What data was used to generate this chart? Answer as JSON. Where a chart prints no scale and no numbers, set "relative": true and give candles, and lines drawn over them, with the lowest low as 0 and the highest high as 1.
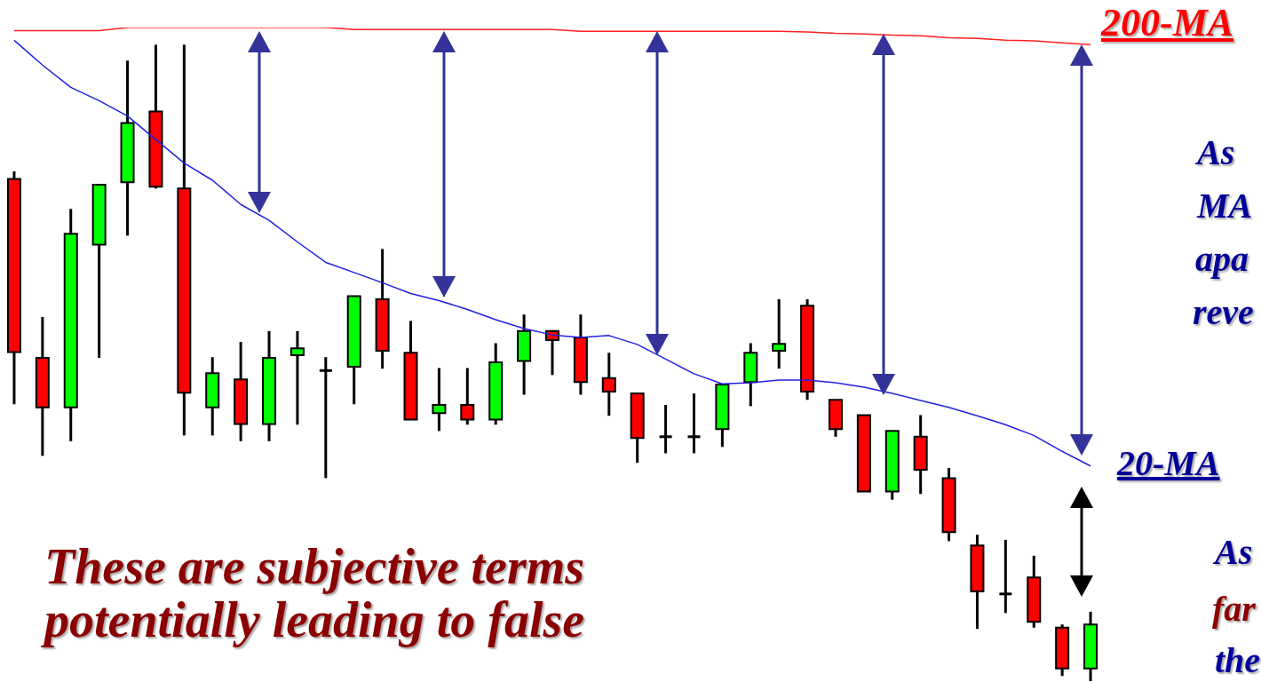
{
  "chart_data": {
    "type": "candlestick",
    "relative": true,
    "legend": false,
    "categories": [
      null,
      null,
      null,
      null,
      null,
      null,
      null,
      null,
      null,
      null,
      null,
      null,
      null,
      null,
      null,
      null,
      null,
      null,
      null,
      null,
      null,
      null,
      null,
      null,
      null,
      null,
      null,
      null,
      null,
      null,
      null,
      null,
      null,
      null,
      null,
      null,
      null,
      null,
      null
    ],
    "ohlc": [
      [
        0.789,
        0.801,
        0.435,
        0.517
      ],
      [
        0.508,
        0.572,
        0.354,
        0.43
      ],
      [
        0.43,
        0.742,
        0.377,
        0.703
      ],
      [
        0.686,
        0.78,
        0.508,
        0.78
      ],
      [
        0.784,
        0.975,
        0.7,
        0.877
      ],
      [
        0.895,
        1,
        0.774,
        0.777
      ],
      [
        0.774,
        1,
        0.386,
        0.453
      ],
      [
        0.43,
        0.509,
        0.386,
        0.484
      ],
      [
        0.474,
        0.533,
        0.377,
        0.404
      ],
      [
        0.404,
        0.55,
        0.377,
        0.508
      ],
      [
        0.512,
        0.55,
        0.403,
        0.523
      ],
      [
        0.488,
        0.509,
        0.319,
        0.488
      ],
      [
        0.494,
        0.605,
        0.435,
        0.605
      ],
      [
        0.6,
        0.679,
        0.491,
        0.519
      ],
      [
        0.516,
        0.566,
        0.411,
        0.411
      ],
      [
        0.421,
        0.492,
        0.393,
        0.434
      ],
      [
        0.434,
        0.492,
        0.403,
        0.411
      ],
      [
        0.411,
        0.531,
        0.403,
        0.501
      ],
      [
        0.503,
        0.576,
        0.45,
        0.55
      ],
      [
        0.55,
        0.55,
        0.481,
        0.536
      ],
      [
        0.54,
        0.576,
        0.45,
        0.47
      ],
      [
        0.476,
        0.516,
        0.417,
        0.455
      ],
      [
        0.452,
        0.452,
        0.343,
        0.382
      ],
      [
        0.384,
        0.434,
        0.358,
        0.384
      ],
      [
        0.384,
        0.452,
        0.358,
        0.384
      ],
      [
        0.396,
        0.466,
        0.368,
        0.466
      ],
      [
        0.47,
        0.531,
        0.432,
        0.516
      ],
      [
        0.519,
        0.6,
        0.491,
        0.53
      ],
      [
        0.59,
        0.6,
        0.442,
        0.455
      ],
      [
        0.442,
        0.442,
        0.384,
        0.396
      ],
      [
        0.418,
        0.418,
        0.298,
        0.298
      ],
      [
        0.298,
        0.393,
        0.285,
        0.393
      ],
      [
        0.384,
        0.418,
        0.294,
        0.332
      ],
      [
        0.319,
        0.335,
        0.22,
        0.234
      ],
      [
        0.213,
        0.23,
        0.082,
        0.141
      ],
      [
        0.137,
        0.222,
        0.107,
        0.137
      ],
      [
        0.163,
        0.197,
        0.084,
        0.093
      ],
      [
        0.084,
        0.089,
        0.008,
        0.02
      ],
      [
        0.02,
        0.109,
        0,
        0.089
      ]
    ],
    "colors": [
      "#ff0000",
      "#ff0000",
      "#00ff00",
      "#00ff00",
      "#00ff00",
      "#ff0000",
      "#ff0000",
      "#00ff00",
      "#ff0000",
      "#00ff00",
      "#00ff00",
      "#000000",
      "#00ff00",
      "#ff0000",
      "#ff0000",
      "#00ff00",
      "#ff0000",
      "#00ff00",
      "#00ff00",
      "#ff0000",
      "#ff0000",
      "#ff0000",
      "#ff0000",
      "#000000",
      "#000000",
      "#00ff00",
      "#00ff00",
      "#00ff00",
      "#ff0000",
      "#ff0000",
      "#ff0000",
      "#00ff00",
      "#ff0000",
      "#ff0000",
      "#ff0000",
      "#000000",
      "#ff0000",
      "#ff0000",
      "#00ff00"
    ],
    "series": [
      {
        "type": "line",
        "color": "#ff2020",
        "values": [
          1.022,
          1.022,
          1.022,
          1.022,
          1.027,
          1.027,
          1.027,
          1.027,
          1.027,
          1.027,
          1.027,
          1.027,
          1.024,
          1.024,
          1.024,
          1.024,
          1.024,
          1.024,
          1.024,
          1.024,
          1.021,
          1.021,
          1.021,
          1.021,
          1.021,
          1.021,
          1.021,
          1.021,
          1.02,
          1.018,
          1.017,
          1.015,
          1.014,
          1.011,
          1.01,
          1.007,
          1.006,
          1.003,
          1.0
        ]
      },
      {
        "type": "line",
        "color": "#2020e0",
        "values": [
          1.007,
          0.968,
          0.933,
          0.912,
          0.888,
          0.851,
          0.814,
          0.787,
          0.749,
          0.724,
          0.69,
          0.658,
          0.642,
          0.626,
          0.609,
          0.598,
          0.584,
          0.568,
          0.554,
          0.544,
          0.54,
          0.543,
          0.529,
          0.506,
          0.483,
          0.467,
          0.469,
          0.473,
          0.473,
          0.469,
          0.462,
          0.452,
          0.441,
          0.43,
          0.417,
          0.403,
          0.386,
          0.361,
          0.338
        ]
      }
    ],
    "annotations": [
      "200-MA",
      "20-MA",
      "These are subjective terms\npotentially leading to false",
      "As",
      "MA",
      "apa",
      "reve",
      "As",
      "far",
      "the"
    ]
  }
}
